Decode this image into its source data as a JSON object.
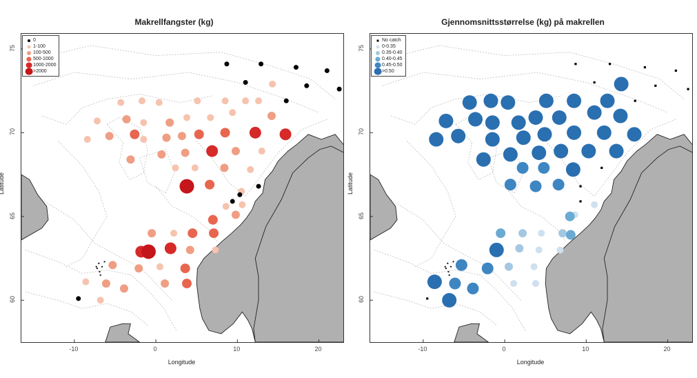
{
  "colors": {
    "land": "#b0b0b0",
    "contour": "#bdbdbd",
    "no_catch": "#000000",
    "reds": [
      "#000000",
      "#f6c3ae",
      "#ef9e83",
      "#e8664f",
      "#d52a28",
      "#c4161b"
    ],
    "blues": [
      "#000000",
      "#cfe0ef",
      "#a4c8e1",
      "#6aaad3",
      "#3d86c2",
      "#2a6fb0"
    ]
  },
  "axes": {
    "x_title": "Longitude",
    "y_title": "Latitude",
    "x_ticks": [
      "-10",
      "0",
      "10",
      "20"
    ],
    "y_ticks": [
      "60",
      "65",
      "70",
      "75"
    ],
    "xlim": [
      -16.5,
      23
    ],
    "ylim": [
      57.5,
      75.9
    ]
  },
  "left_map": {
    "title": "Makrellfangster (kg)",
    "legend": [
      "0",
      "1-100",
      "100-500",
      "500-1000",
      "1000-2000",
      ">2000"
    ],
    "stations": [
      [
        8.7,
        74.1,
        0
      ],
      [
        11.0,
        73.0,
        0
      ],
      [
        12.9,
        74.1,
        0
      ],
      [
        17.2,
        73.9,
        0
      ],
      [
        21.0,
        73.7,
        0
      ],
      [
        18.5,
        72.8,
        0
      ],
      [
        22.5,
        72.6,
        0
      ],
      [
        16.0,
        71.9,
        0
      ],
      [
        14.3,
        72.9,
        1
      ],
      [
        -4.3,
        71.8,
        1
      ],
      [
        -1.7,
        71.9,
        1
      ],
      [
        0.4,
        71.8,
        1
      ],
      [
        5.1,
        71.9,
        1
      ],
      [
        8.5,
        71.9,
        1
      ],
      [
        11.0,
        71.9,
        1
      ],
      [
        12.6,
        71.9,
        1
      ],
      [
        -7.2,
        70.7,
        1
      ],
      [
        -3.6,
        70.8,
        2
      ],
      [
        -1.5,
        70.6,
        1
      ],
      [
        1.7,
        70.6,
        2
      ],
      [
        3.8,
        70.9,
        1
      ],
      [
        6.7,
        70.9,
        1
      ],
      [
        9.4,
        71.2,
        1
      ],
      [
        14.2,
        71.0,
        2
      ],
      [
        -8.4,
        69.6,
        1
      ],
      [
        -5.7,
        69.8,
        2
      ],
      [
        -2.6,
        69.9,
        3
      ],
      [
        -1.5,
        69.6,
        1
      ],
      [
        1.3,
        69.7,
        2
      ],
      [
        3.2,
        69.8,
        2
      ],
      [
        5.3,
        69.9,
        3
      ],
      [
        8.5,
        70.0,
        3
      ],
      [
        12.2,
        70.0,
        4
      ],
      [
        15.9,
        69.9,
        4
      ],
      [
        -3.1,
        68.4,
        2
      ],
      [
        0.7,
        68.7,
        2
      ],
      [
        3.6,
        68.8,
        2
      ],
      [
        6.9,
        68.9,
        4
      ],
      [
        9.8,
        68.9,
        2
      ],
      [
        13.0,
        68.9,
        1
      ],
      [
        2.4,
        67.9,
        1
      ],
      [
        4.8,
        67.9,
        1
      ],
      [
        8.4,
        67.9,
        2
      ],
      [
        11.6,
        67.8,
        1
      ],
      [
        3.8,
        66.8,
        5
      ],
      [
        6.6,
        66.9,
        3
      ],
      [
        10.5,
        66.5,
        1
      ],
      [
        8.6,
        65.6,
        1
      ],
      [
        10.3,
        66.3,
        0
      ],
      [
        9.4,
        65.9,
        0
      ],
      [
        10.6,
        65.7,
        1
      ],
      [
        12.6,
        66.8,
        0
      ],
      [
        7.0,
        64.8,
        3
      ],
      [
        9.8,
        65.1,
        2
      ],
      [
        -0.5,
        64.0,
        2
      ],
      [
        2.2,
        64.0,
        1
      ],
      [
        4.5,
        64.0,
        3
      ],
      [
        7.1,
        64.0,
        3
      ],
      [
        -1.8,
        62.9,
        4
      ],
      [
        1.8,
        63.1,
        4
      ],
      [
        -0.9,
        62.9,
        5
      ],
      [
        4.2,
        63.0,
        2
      ],
      [
        7.3,
        63.0,
        1
      ],
      [
        -5.3,
        62.1,
        2
      ],
      [
        -2.1,
        61.9,
        2
      ],
      [
        0.5,
        62.0,
        1
      ],
      [
        3.6,
        61.9,
        3
      ],
      [
        -8.6,
        61.1,
        1
      ],
      [
        -6.1,
        61.0,
        2
      ],
      [
        -3.9,
        60.7,
        2
      ],
      [
        1.1,
        61.0,
        2
      ],
      [
        3.8,
        61.0,
        3
      ],
      [
        -9.5,
        60.1,
        0
      ],
      [
        -6.8,
        60.0,
        1
      ]
    ]
  },
  "right_map": {
    "title": "Gjennomsnittsstørrelse (kg) på makrellen",
    "legend": [
      "No catch",
      "0-0.35",
      "0.35-0.40",
      "0.40-0.45",
      "0.45-0.50",
      ">0.50"
    ],
    "stations": [
      [
        8.7,
        74.1,
        0
      ],
      [
        11.0,
        73.0,
        0
      ],
      [
        12.9,
        74.1,
        0
      ],
      [
        17.2,
        73.9,
        0
      ],
      [
        21.0,
        73.7,
        0
      ],
      [
        18.5,
        72.8,
        0
      ],
      [
        22.5,
        72.6,
        0
      ],
      [
        16.0,
        71.9,
        0
      ],
      [
        14.3,
        72.9,
        5
      ],
      [
        -4.3,
        71.8,
        5
      ],
      [
        -1.7,
        71.9,
        5
      ],
      [
        0.4,
        71.8,
        5
      ],
      [
        5.1,
        71.9,
        5
      ],
      [
        8.5,
        71.9,
        5
      ],
      [
        11.0,
        71.2,
        5
      ],
      [
        12.6,
        71.9,
        5
      ],
      [
        -7.2,
        70.7,
        5
      ],
      [
        -3.6,
        70.8,
        5
      ],
      [
        -1.5,
        70.6,
        5
      ],
      [
        1.7,
        70.6,
        5
      ],
      [
        3.8,
        70.9,
        5
      ],
      [
        6.7,
        70.9,
        5
      ],
      [
        14.2,
        71.0,
        5
      ],
      [
        -8.4,
        69.6,
        5
      ],
      [
        -5.7,
        69.8,
        5
      ],
      [
        -1.5,
        69.6,
        5
      ],
      [
        2.3,
        69.7,
        5
      ],
      [
        4.9,
        69.9,
        5
      ],
      [
        8.5,
        70.0,
        5
      ],
      [
        12.2,
        70.0,
        5
      ],
      [
        15.9,
        69.9,
        5
      ],
      [
        -2.6,
        68.4,
        5
      ],
      [
        0.7,
        68.7,
        5
      ],
      [
        4.2,
        68.8,
        5
      ],
      [
        6.9,
        68.9,
        5
      ],
      [
        10.3,
        68.9,
        5
      ],
      [
        13.7,
        68.9,
        5
      ],
      [
        2.2,
        67.9,
        4
      ],
      [
        4.8,
        67.9,
        4
      ],
      [
        8.4,
        67.8,
        5
      ],
      [
        11.9,
        67.9,
        0
      ],
      [
        0.7,
        66.9,
        4
      ],
      [
        3.8,
        66.8,
        4
      ],
      [
        6.6,
        66.9,
        4
      ],
      [
        9.3,
        66.8,
        0
      ],
      [
        9.3,
        65.9,
        0
      ],
      [
        11.0,
        65.7,
        1
      ],
      [
        8.6,
        65.1,
        1
      ],
      [
        8.0,
        65.0,
        3
      ],
      [
        -0.5,
        64.0,
        3
      ],
      [
        2.2,
        64.0,
        2
      ],
      [
        4.5,
        64.0,
        1
      ],
      [
        7.1,
        64.0,
        2
      ],
      [
        8.1,
        63.9,
        3
      ],
      [
        -1.0,
        63.0,
        5
      ],
      [
        1.8,
        63.1,
        2
      ],
      [
        4.2,
        63.0,
        1
      ],
      [
        6.8,
        63.0,
        1
      ],
      [
        -5.3,
        62.1,
        4
      ],
      [
        -2.1,
        61.9,
        4
      ],
      [
        0.5,
        62.0,
        2
      ],
      [
        3.6,
        62.0,
        1
      ],
      [
        -8.6,
        61.1,
        5
      ],
      [
        -6.1,
        61.0,
        4
      ],
      [
        -3.9,
        60.7,
        4
      ],
      [
        1.1,
        61.0,
        1
      ],
      [
        3.8,
        61.0,
        1
      ],
      [
        -9.5,
        60.1,
        0
      ],
      [
        -6.8,
        60.0,
        5
      ]
    ]
  }
}
